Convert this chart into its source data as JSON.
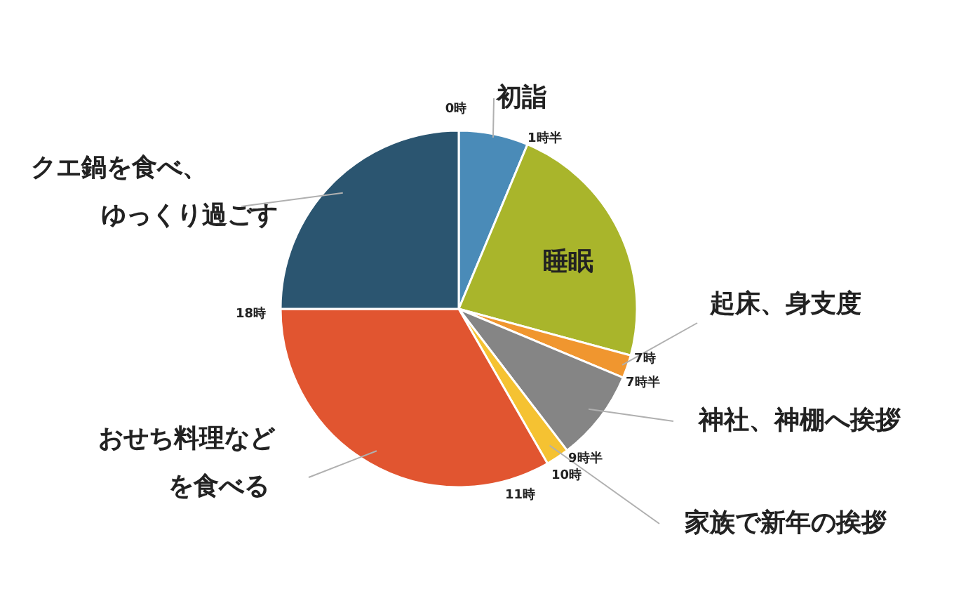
{
  "chart_data": {
    "type": "pie",
    "categories": [
      "初詣",
      "睡眠",
      "起床、身支度",
      "神社、神棚へ挨拶",
      "家族で新年の挨拶",
      "おせち料理などを食べる",
      "クエ鍋を食べ、ゆっくり過ごす"
    ],
    "values": [
      6.3,
      22.9,
      2.1,
      8.3,
      2.1,
      33.3,
      25.0
    ],
    "colors": [
      "#4a8bb8",
      "#a9b52b",
      "#f0962f",
      "#858585",
      "#f5c232",
      "#e15530",
      "#2b5570"
    ],
    "annotations": [
      "0時",
      "1時半",
      "7時",
      "7時半",
      "9時半",
      "10時",
      "11時",
      "18時"
    ]
  }
}
